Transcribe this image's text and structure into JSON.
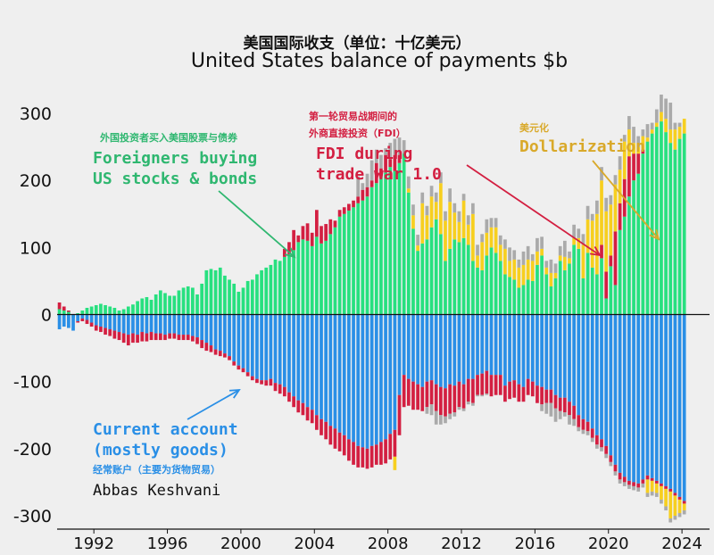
{
  "title_cn": "美国国际收支（单位：十亿美元）",
  "title_en": "United States balance of payments $b",
  "credit": "Abbas Keshvani",
  "annotations": {
    "foreigners": {
      "cn": "外国投资者买入美国股票与债券",
      "line1": "Foreigners buying",
      "line2": "US stocks & bonds"
    },
    "fdi": {
      "cn1": "第一轮贸易战期间的",
      "cn2": "外商直接投资（FDI）",
      "line1": "FDI during",
      "line2": "trade war 1.0"
    },
    "dollarization": {
      "cn": "美元化",
      "line1": "Dollarization"
    },
    "current_account": {
      "line1": "Current account",
      "line2": "(mostly goods)",
      "cn": "经常账户（主要为货物贸易）"
    }
  },
  "colors": {
    "portfolio": "#27e07f",
    "fdi": "#d31f41",
    "dollarization": "#f7cf1f",
    "other": "#aaaaaa",
    "current_account": "#2a8fe6",
    "foreigners_text": "#2fb770",
    "fdi_text": "#d31f41",
    "dollar_text": "#d9a92a",
    "ca_text": "#2a8fe6"
  },
  "chart_data": {
    "type": "bar",
    "stacked": true,
    "frequency": "quarterly",
    "x_start": "1990-Q1",
    "xlim": [
      1990,
      2025.5
    ],
    "ylim": [
      -320,
      340
    ],
    "yticks": [
      300,
      200,
      100,
      0,
      -100,
      -200,
      -300
    ],
    "xticks": [
      "1992",
      "1996",
      "2000",
      "2004",
      "2008",
      "2012",
      "2016",
      "2020",
      "2024"
    ],
    "grid": false,
    "legend": "none",
    "positive_series": [
      {
        "key": "portfolio",
        "values": [
          8,
          6,
          4,
          -5,
          2,
          6,
          10,
          12,
          14,
          16,
          14,
          12,
          10,
          6,
          8,
          12,
          15,
          20,
          24,
          26,
          22,
          30,
          36,
          32,
          28,
          28,
          36,
          40,
          42,
          40,
          30,
          46,
          66,
          68,
          66,
          70,
          58,
          52,
          46,
          34,
          40,
          50,
          52,
          60,
          66,
          70,
          74,
          82,
          80,
          86,
          90,
          96,
          108,
          112,
          110,
          102,
          116,
          106,
          110,
          120,
          130,
          146,
          150,
          155,
          160,
          166,
          170,
          176,
          190,
          196,
          206,
          212,
          220,
          214,
          226,
          240,
          182,
          128,
          95,
          106,
          112,
          130,
          142,
          120,
          80,
          98,
          112,
          108,
          114,
          104,
          80,
          70,
          66,
          88,
          100,
          92,
          80,
          60,
          56,
          52,
          40,
          44,
          52,
          50,
          74,
          88,
          60,
          42,
          54,
          80,
          66,
          76,
          104,
          98,
          54,
          92,
          70,
          60,
          84,
          24,
          72,
          44,
          126,
          146,
          176,
          200,
          210,
          240,
          258,
          270,
          280,
          288,
          272,
          256,
          246,
          262,
          270
        ]
      },
      {
        "key": "fdi",
        "values": [
          10,
          6,
          2,
          0,
          0,
          0,
          0,
          0,
          0,
          0,
          0,
          0,
          0,
          0,
          0,
          0,
          0,
          0,
          0,
          0,
          0,
          0,
          0,
          0,
          0,
          0,
          0,
          0,
          0,
          0,
          0,
          0,
          0,
          0,
          0,
          0,
          0,
          0,
          0,
          0,
          0,
          0,
          0,
          0,
          0,
          0,
          0,
          0,
          0,
          12,
          18,
          30,
          10,
          20,
          26,
          20,
          40,
          26,
          25,
          22,
          10,
          10,
          10,
          10,
          10,
          10,
          16,
          14,
          10,
          30,
          12,
          26,
          12,
          24,
          12,
          0,
          0,
          0,
          0,
          0,
          0,
          0,
          0,
          0,
          0,
          0,
          0,
          0,
          0,
          0,
          0,
          0,
          0,
          0,
          0,
          0,
          0,
          0,
          0,
          0,
          0,
          0,
          0,
          0,
          0,
          0,
          0,
          0,
          0,
          0,
          0,
          0,
          0,
          0,
          0,
          0,
          0,
          0,
          20,
          40,
          16,
          80,
          40,
          56,
          60,
          40,
          30,
          6,
          0,
          0,
          0,
          0,
          0,
          0,
          0,
          0,
          0
        ]
      },
      {
        "key": "dollarization",
        "values": [
          0,
          0,
          0,
          0,
          0,
          0,
          0,
          0,
          0,
          0,
          0,
          0,
          0,
          0,
          0,
          0,
          0,
          0,
          0,
          0,
          0,
          0,
          0,
          0,
          0,
          0,
          0,
          0,
          0,
          0,
          0,
          0,
          0,
          0,
          0,
          0,
          0,
          0,
          0,
          0,
          0,
          0,
          0,
          0,
          0,
          0,
          0,
          0,
          0,
          0,
          0,
          0,
          0,
          0,
          0,
          0,
          0,
          0,
          0,
          0,
          0,
          0,
          0,
          0,
          0,
          0,
          0,
          0,
          0,
          0,
          0,
          0,
          0,
          0,
          0,
          0,
          6,
          20,
          8,
          60,
          36,
          46,
          26,
          76,
          60,
          70,
          40,
          30,
          56,
          30,
          70,
          18,
          42,
          34,
          30,
          38,
          24,
          38,
          24,
          30,
          30,
          30,
          30,
          30,
          20,
          10,
          10,
          20,
          8,
          8,
          20,
          8,
          10,
          16,
          50,
          50,
          70,
          90,
          96,
          90,
          76,
          70,
          50,
          56,
          40,
          16,
          10,
          20,
          6,
          6,
          6,
          14,
          20,
          20,
          30,
          18,
          22
        ]
      },
      {
        "key": "other",
        "values": [
          0,
          0,
          0,
          0,
          0,
          0,
          0,
          0,
          0,
          0,
          0,
          0,
          0,
          0,
          0,
          0,
          0,
          0,
          0,
          0,
          0,
          0,
          0,
          0,
          0,
          0,
          0,
          0,
          0,
          0,
          0,
          0,
          0,
          0,
          0,
          0,
          0,
          0,
          0,
          0,
          0,
          0,
          0,
          0,
          0,
          0,
          0,
          0,
          0,
          0,
          0,
          0,
          0,
          0,
          0,
          0,
          0,
          0,
          0,
          0,
          0,
          0,
          0,
          0,
          0,
          30,
          10,
          20,
          30,
          20,
          20,
          10,
          24,
          24,
          26,
          20,
          18,
          16,
          16,
          16,
          14,
          16,
          14,
          16,
          14,
          20,
          14,
          16,
          10,
          14,
          16,
          16,
          12,
          20,
          14,
          14,
          14,
          14,
          20,
          14,
          12,
          20,
          20,
          10,
          20,
          18,
          10,
          20,
          14,
          14,
          24,
          10,
          20,
          14,
          16,
          20,
          10,
          20,
          20,
          20,
          14,
          14,
          20,
          10,
          20,
          24,
          16,
          10,
          20,
          10,
          20,
          26,
          30,
          40,
          10,
          6,
          0
        ]
      }
    ],
    "negative_series": [
      {
        "key": "current_account",
        "values": [
          -22,
          -18,
          -20,
          -24,
          -10,
          -6,
          -8,
          -12,
          -16,
          -18,
          -20,
          -22,
          -24,
          -26,
          -28,
          -30,
          -28,
          -30,
          -26,
          -28,
          -26,
          -28,
          -28,
          -30,
          -28,
          -28,
          -30,
          -30,
          -30,
          -32,
          -34,
          -38,
          -42,
          -46,
          -52,
          -54,
          -58,
          -62,
          -70,
          -76,
          -80,
          -86,
          -92,
          -96,
          -98,
          -98,
          -96,
          -102,
          -104,
          -108,
          -116,
          -122,
          -128,
          -132,
          -138,
          -142,
          -150,
          -156,
          -160,
          -166,
          -170,
          -176,
          -180,
          -186,
          -190,
          -196,
          -198,
          -200,
          -196,
          -194,
          -190,
          -186,
          -178,
          -172,
          -120,
          -90,
          -96,
          -100,
          -104,
          -108,
          -100,
          -98,
          -104,
          -108,
          -110,
          -104,
          -106,
          -100,
          -104,
          -96,
          -96,
          -90,
          -88,
          -84,
          -90,
          -90,
          -90,
          -106,
          -100,
          -98,
          -104,
          -108,
          -96,
          -100,
          -106,
          -108,
          -112,
          -112,
          -120,
          -124,
          -124,
          -130,
          -136,
          -150,
          -156,
          -160,
          -170,
          -180,
          -186,
          -196,
          -210,
          -224,
          -236,
          -242,
          -248,
          -250,
          -252,
          -246,
          -240,
          -244,
          -248,
          -252,
          -256,
          -260,
          -266,
          -272,
          -278
        ]
      },
      {
        "key": "fdi",
        "values": [
          0,
          0,
          0,
          0,
          -2,
          -4,
          -6,
          -6,
          -8,
          -8,
          -10,
          -10,
          -12,
          -12,
          -14,
          -16,
          -14,
          -12,
          -14,
          -12,
          -12,
          -10,
          -10,
          -8,
          -8,
          -8,
          -8,
          -8,
          -8,
          -8,
          -10,
          -12,
          -12,
          -10,
          -8,
          -8,
          -6,
          -6,
          -6,
          -6,
          -6,
          -6,
          -6,
          -6,
          -6,
          -8,
          -10,
          -12,
          -14,
          -14,
          -14,
          -16,
          -18,
          -18,
          -20,
          -20,
          -22,
          -24,
          -26,
          -28,
          -30,
          -28,
          -30,
          -32,
          -34,
          -32,
          -30,
          -30,
          -32,
          -30,
          -34,
          -36,
          -38,
          -40,
          -60,
          -48,
          -40,
          -42,
          -38,
          -36,
          -38,
          -36,
          -40,
          -42,
          -42,
          -44,
          -40,
          -38,
          -36,
          -34,
          -36,
          -30,
          -32,
          -34,
          -32,
          -30,
          -30,
          -24,
          -26,
          -26,
          -26,
          -22,
          -24,
          -22,
          -26,
          -26,
          -20,
          -20,
          -20,
          -20,
          -22,
          -20,
          -20,
          -18,
          -16,
          -14,
          -14,
          -14,
          -12,
          -12,
          -10,
          -10,
          -10,
          -8,
          -6,
          -6,
          -6,
          -6,
          -6,
          -4,
          -4,
          -4,
          -4,
          -4,
          -4,
          -4,
          -4
        ]
      },
      {
        "key": "dollarization",
        "values": [
          0,
          0,
          0,
          0,
          0,
          0,
          0,
          0,
          0,
          0,
          0,
          0,
          0,
          0,
          0,
          0,
          0,
          0,
          0,
          0,
          0,
          0,
          0,
          0,
          0,
          0,
          0,
          0,
          0,
          0,
          0,
          0,
          0,
          0,
          0,
          0,
          0,
          0,
          0,
          0,
          0,
          0,
          0,
          0,
          0,
          0,
          0,
          0,
          0,
          0,
          0,
          0,
          0,
          0,
          0,
          0,
          0,
          0,
          0,
          0,
          0,
          0,
          0,
          0,
          0,
          0,
          0,
          0,
          0,
          0,
          0,
          0,
          0,
          -20,
          0,
          0,
          0,
          0,
          0,
          0,
          0,
          0,
          0,
          0,
          0,
          0,
          0,
          0,
          0,
          0,
          0,
          0,
          0,
          0,
          0,
          0,
          0,
          0,
          0,
          0,
          0,
          0,
          0,
          0,
          0,
          0,
          0,
          0,
          0,
          0,
          0,
          0,
          0,
          0,
          0,
          0,
          0,
          0,
          0,
          0,
          0,
          0,
          0,
          0,
          0,
          0,
          0,
          0,
          -20,
          -16,
          -14,
          -20,
          -26,
          -40,
          -30,
          -20,
          -10
        ]
      },
      {
        "key": "other",
        "values": [
          0,
          0,
          0,
          0,
          0,
          0,
          0,
          0,
          0,
          0,
          0,
          0,
          0,
          0,
          0,
          0,
          0,
          0,
          0,
          0,
          0,
          0,
          0,
          0,
          0,
          0,
          0,
          0,
          0,
          0,
          0,
          0,
          0,
          0,
          0,
          0,
          0,
          0,
          0,
          0,
          0,
          0,
          0,
          0,
          0,
          0,
          0,
          0,
          0,
          0,
          0,
          0,
          0,
          0,
          0,
          0,
          0,
          0,
          0,
          0,
          0,
          0,
          0,
          0,
          0,
          0,
          0,
          0,
          0,
          0,
          0,
          0,
          0,
          0,
          0,
          0,
          0,
          0,
          0,
          0,
          -10,
          -16,
          -20,
          -14,
          -10,
          -8,
          -6,
          -4,
          -4,
          -4,
          -4,
          -2,
          -2,
          -2,
          0,
          0,
          0,
          0,
          0,
          0,
          0,
          0,
          0,
          0,
          0,
          -10,
          -16,
          -20,
          -20,
          -12,
          -6,
          -14,
          -10,
          -6,
          -6,
          -6,
          -6,
          -6,
          -6,
          -6,
          -6,
          -6,
          -6,
          -6,
          -6,
          -6,
          -6,
          -6,
          -6,
          -6,
          -6,
          -6,
          -6,
          -6,
          -6,
          -6,
          -6
        ]
      }
    ]
  }
}
